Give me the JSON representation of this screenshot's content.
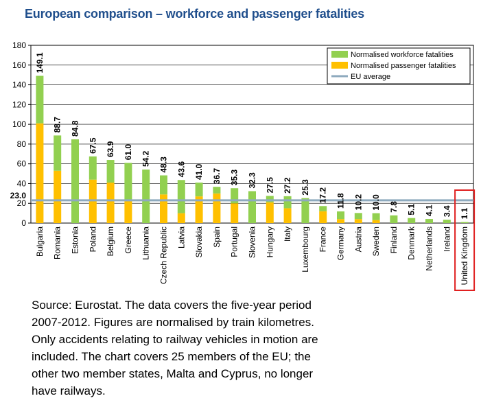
{
  "page": {
    "title": "European comparison – workforce and passenger fatalities",
    "source_lines": [
      "Source: Eurostat. The data covers the five-year period",
      "2007-2012. Figures are normalised by train kilometres.",
      "Only accidents relating to railway vehicles in motion are",
      "included. The chart covers 25 members of the EU; the",
      "other two member states, Malta and Cyprus, no longer",
      "have railways."
    ]
  },
  "chart_data": {
    "type": "bar",
    "stacked": true,
    "title": "European comparison – workforce and passenger fatalities",
    "xlabel": "",
    "ylabel": "",
    "ylim": [
      0,
      180
    ],
    "yticks": [
      0,
      20,
      40,
      60,
      80,
      100,
      120,
      140,
      160,
      180
    ],
    "grid": true,
    "legend_position": "top-right",
    "categories": [
      "Bulgaria",
      "Romania",
      "Estonia",
      "Poland",
      "Belgium",
      "Greece",
      "Lithuania",
      "Czech Republic",
      "Latvia",
      "Slovakia",
      "Spain",
      "Portugal",
      "Slovenia",
      "Hungary",
      "Italy",
      "Luxembourg",
      "France",
      "Germany",
      "Austria",
      "Sweden",
      "Finland",
      "Denmark",
      "Netherlands",
      "Ireland",
      "United Kingdom"
    ],
    "totals": [
      149.1,
      88.7,
      84.8,
      67.5,
      63.9,
      61.0,
      54.2,
      48.3,
      43.6,
      41.0,
      36.7,
      35.3,
      32.3,
      27.5,
      27.2,
      25.3,
      17.2,
      11.8,
      10.2,
      10.0,
      7.8,
      5.1,
      4.1,
      3.4,
      1.1
    ],
    "total_labels": [
      "149.1",
      "88.7",
      "84.8",
      "67.5",
      "63.9",
      "61.0",
      "54.2",
      "48.3",
      "43.6",
      "41.0",
      "36.7",
      "35.3",
      "32.3",
      "27.5",
      "27.2",
      "25.3",
      "17.2",
      "11.8",
      "10.2",
      "10.0",
      "7.8",
      "5.1",
      "4.1",
      "3.4",
      "1.1"
    ],
    "series": [
      {
        "name": "Normalised passenger fatalities",
        "color": "#ffc000",
        "values": [
          101,
          53,
          0,
          44,
          41,
          23,
          0,
          29,
          10,
          27,
          30,
          20,
          0,
          21,
          15,
          0,
          12,
          4,
          4,
          3,
          0,
          0,
          0,
          0,
          0
        ]
      },
      {
        "name": "Normalised workforce fatalities",
        "color": "#92d050",
        "values": [
          48.1,
          35.7,
          84.8,
          23.5,
          22.9,
          38.0,
          54.2,
          19.3,
          33.6,
          14.0,
          6.7,
          15.3,
          32.3,
          6.5,
          12.2,
          25.3,
          5.2,
          7.8,
          6.2,
          7.0,
          7.8,
          5.1,
          4.1,
          3.4,
          1.1
        ]
      }
    ],
    "eu_average": {
      "name": "EU average",
      "value": 23.0,
      "label": "23.0",
      "color": "#8eaabe"
    },
    "legend": [
      "Normalised workforce fatalities",
      "Normalised passenger fatalities",
      "EU average"
    ],
    "highlight": {
      "category": "United Kingdom",
      "color": "#e02020"
    }
  }
}
